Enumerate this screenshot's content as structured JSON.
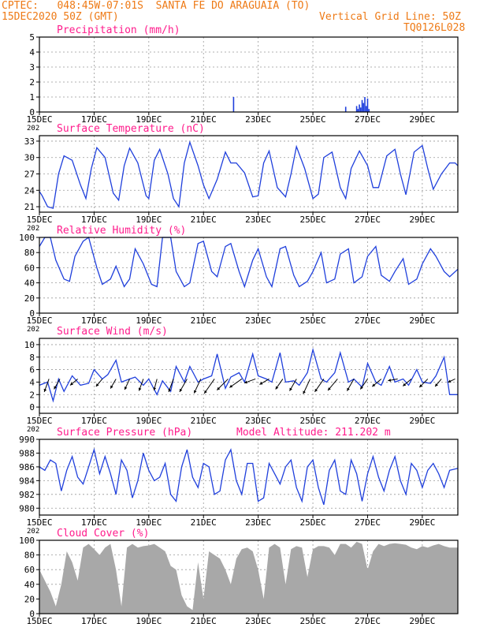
{
  "header": {
    "line1": "CPTEC:   048:45W-07:01S  SANTA FE DO ARAGUAIA (TO)",
    "date": "15DEC2020 50Z (GMT)",
    "grid_note": "Vertical Grid Line: 50Z",
    "code": "TQ0126L028"
  },
  "colors": {
    "header": "#ee7a16",
    "title": "#ff1c8c",
    "series": "#1f3fdc",
    "cloud": "#a8a8a8",
    "wind_arrow": "#000000",
    "grid": "#999999"
  },
  "x_axis": {
    "tick_labels": [
      "15DEC",
      "17DEC",
      "19DEC",
      "21DEC",
      "23DEC",
      "25DEC",
      "27DEC",
      "29DEC"
    ],
    "tick_days": [
      0,
      2,
      4,
      6,
      8,
      10,
      12,
      14
    ],
    "range_days": [
      0,
      15.3
    ],
    "year_fragment": "202"
  },
  "panels": {
    "precip": {
      "title": "Precipitation (mm/h)"
    },
    "temp": {
      "title": "Surface Temperature (nC)"
    },
    "rh": {
      "title": "Relative Humidity (%)"
    },
    "wind": {
      "title": "Surface Wind (m/s)"
    },
    "pressure": {
      "title": "Surface Pressure (hPa)",
      "altitude": "Model Altitude: 211.202 m"
    },
    "cloud": {
      "title": "Cloud Cover (%)"
    }
  },
  "chart_data": [
    {
      "type": "bar",
      "title": "Precipitation (mm/h)",
      "ylim": [
        0,
        5
      ],
      "yticks": [
        0,
        1,
        2,
        3,
        4,
        5
      ],
      "x": [
        7.1,
        11.2,
        11.6,
        11.65,
        11.7,
        11.75,
        11.8,
        11.85,
        11.9,
        11.95,
        12.0,
        12.05
      ],
      "values": [
        1.0,
        0.35,
        0.4,
        0.2,
        0.5,
        0.3,
        0.8,
        0.6,
        1.0,
        0.4,
        0.9,
        0.2
      ]
    },
    {
      "type": "line",
      "title": "Surface Temperature (nC)",
      "ylim": [
        20,
        34
      ],
      "yticks": [
        21,
        24,
        27,
        30,
        33
      ],
      "x": [
        0,
        0.1,
        0.3,
        0.5,
        0.7,
        0.9,
        1.2,
        1.5,
        1.7,
        1.9,
        2.1,
        2.4,
        2.7,
        2.9,
        3.1,
        3.3,
        3.6,
        3.9,
        4.0,
        4.2,
        4.4,
        4.7,
        4.9,
        5.1,
        5.3,
        5.5,
        5.8,
        6.0,
        6.2,
        6.5,
        6.8,
        7.0,
        7.2,
        7.5,
        7.8,
        8.0,
        8.2,
        8.4,
        8.7,
        9.0,
        9.2,
        9.4,
        9.7,
        10.0,
        10.2,
        10.4,
        10.7,
        11.0,
        11.2,
        11.4,
        11.7,
        12.0,
        12.2,
        12.4,
        12.7,
        13.0,
        13.2,
        13.4,
        13.7,
        14.0,
        14.2,
        14.4,
        14.7,
        15.0,
        15.2,
        15.3
      ],
      "values": [
        23.8,
        23.0,
        21.0,
        20.7,
        27.0,
        30.3,
        29.5,
        25.0,
        22.5,
        28.0,
        31.8,
        30.0,
        23.5,
        22.2,
        28.5,
        31.7,
        29.0,
        23.0,
        22.5,
        29.5,
        31.5,
        27.0,
        22.5,
        21.0,
        29.0,
        32.8,
        28.5,
        25.0,
        22.5,
        26.0,
        31.0,
        29.0,
        29.0,
        27.2,
        22.8,
        23.0,
        29.0,
        31.2,
        24.5,
        22.8,
        27.0,
        32.0,
        28.0,
        22.5,
        23.3,
        30.0,
        31.0,
        24.5,
        22.5,
        28.0,
        31.2,
        28.5,
        24.5,
        24.5,
        30.3,
        31.5,
        27.0,
        23.2,
        31.0,
        32.2,
        28.0,
        24.2,
        27.0,
        29.0,
        29.0,
        28.5
      ]
    },
    {
      "type": "line",
      "title": "Relative Humidity (%)",
      "ylim": [
        0,
        100
      ],
      "yticks": [
        0,
        20,
        40,
        60,
        80,
        100
      ],
      "x": [
        0,
        0.2,
        0.4,
        0.6,
        0.9,
        1.1,
        1.3,
        1.6,
        1.8,
        2.1,
        2.3,
        2.6,
        2.8,
        3.1,
        3.3,
        3.5,
        3.8,
        4.1,
        4.3,
        4.5,
        4.8,
        5.0,
        5.3,
        5.5,
        5.8,
        6.0,
        6.3,
        6.5,
        6.8,
        7.0,
        7.3,
        7.5,
        7.8,
        8.0,
        8.3,
        8.5,
        8.8,
        9.0,
        9.3,
        9.5,
        9.8,
        10.0,
        10.3,
        10.5,
        10.8,
        11.0,
        11.3,
        11.5,
        11.8,
        12.0,
        12.3,
        12.5,
        12.8,
        13.0,
        13.3,
        13.5,
        13.8,
        14.0,
        14.3,
        14.5,
        14.8,
        15.0,
        15.3
      ],
      "values": [
        88,
        100,
        100,
        70,
        45,
        42,
        75,
        95,
        100,
        60,
        38,
        45,
        62,
        35,
        45,
        85,
        65,
        38,
        35,
        100,
        100,
        55,
        35,
        40,
        92,
        95,
        55,
        48,
        88,
        92,
        55,
        35,
        70,
        85,
        48,
        35,
        85,
        88,
        50,
        35,
        42,
        55,
        80,
        40,
        45,
        78,
        85,
        40,
        48,
        75,
        88,
        50,
        42,
        55,
        72,
        38,
        45,
        65,
        85,
        75,
        55,
        48,
        58
      ]
    },
    {
      "type": "line",
      "title": "Surface Wind (m/s)",
      "ylim": [
        -1,
        11
      ],
      "yticks": [
        0,
        2,
        4,
        6,
        8,
        10
      ],
      "x": [
        0,
        0.3,
        0.5,
        0.7,
        0.9,
        1.2,
        1.5,
        1.8,
        2.0,
        2.3,
        2.5,
        2.8,
        3.0,
        3.3,
        3.5,
        3.8,
        4.0,
        4.3,
        4.5,
        4.8,
        5.0,
        5.3,
        5.5,
        5.8,
        6.0,
        6.3,
        6.5,
        6.8,
        7.0,
        7.3,
        7.5,
        7.8,
        8.0,
        8.3,
        8.5,
        8.8,
        9.0,
        9.3,
        9.5,
        9.8,
        10.0,
        10.3,
        10.5,
        10.8,
        11.0,
        11.3,
        11.5,
        11.8,
        12.0,
        12.3,
        12.5,
        12.8,
        13.0,
        13.3,
        13.5,
        13.8,
        14.0,
        14.3,
        14.5,
        14.8,
        15.0,
        15.3
      ],
      "values": [
        3.5,
        4.0,
        1.0,
        4.5,
        2.5,
        5.0,
        3.5,
        3.8,
        6.0,
        4.5,
        5.2,
        7.5,
        4.0,
        4.5,
        4.8,
        3.5,
        4.5,
        2.0,
        4.2,
        2.5,
        6.5,
        4.0,
        6.5,
        4.0,
        4.5,
        5.0,
        8.5,
        3.0,
        4.8,
        5.5,
        4.0,
        8.5,
        5.0,
        4.5,
        4.0,
        8.7,
        4.0,
        4.2,
        3.5,
        5.5,
        9.2,
        4.5,
        4.0,
        5.5,
        8.7,
        4.0,
        4.5,
        3.2,
        7.0,
        4.0,
        3.5,
        6.5,
        4.0,
        4.5,
        3.5,
        6.0,
        4.0,
        3.8,
        5.0,
        8.0,
        2.0,
        2.0
      ],
      "arrows": [
        {
          "x": 0.35,
          "speed": 3.5,
          "dir_deg": 200
        },
        {
          "x": 0.75,
          "speed": 3.0,
          "dir_deg": 210
        },
        {
          "x": 1.4,
          "speed": 2.5,
          "dir_deg": 230
        },
        {
          "x": 2.3,
          "speed": 2.5,
          "dir_deg": 220
        },
        {
          "x": 2.8,
          "speed": 2.8,
          "dir_deg": 210
        },
        {
          "x": 3.3,
          "speed": 3.0,
          "dir_deg": 205
        },
        {
          "x": 3.8,
          "speed": 3.2,
          "dir_deg": 200
        },
        {
          "x": 4.3,
          "speed": 3.0,
          "dir_deg": 195
        },
        {
          "x": 4.9,
          "speed": 3.5,
          "dir_deg": 200
        },
        {
          "x": 5.4,
          "speed": 3.8,
          "dir_deg": 210
        },
        {
          "x": 5.9,
          "speed": 4.0,
          "dir_deg": 205
        },
        {
          "x": 6.4,
          "speed": 4.5,
          "dir_deg": 215
        },
        {
          "x": 6.9,
          "speed": 4.0,
          "dir_deg": 225
        },
        {
          "x": 7.4,
          "speed": 3.8,
          "dir_deg": 235
        },
        {
          "x": 7.9,
          "speed": 3.0,
          "dir_deg": 250
        },
        {
          "x": 8.4,
          "speed": 2.8,
          "dir_deg": 240
        },
        {
          "x": 8.9,
          "speed": 3.2,
          "dir_deg": 215
        },
        {
          "x": 9.4,
          "speed": 3.5,
          "dir_deg": 210
        },
        {
          "x": 9.9,
          "speed": 4.2,
          "dir_deg": 205
        },
        {
          "x": 10.4,
          "speed": 4.0,
          "dir_deg": 215
        },
        {
          "x": 10.9,
          "speed": 3.8,
          "dir_deg": 220
        },
        {
          "x": 11.5,
          "speed": 3.5,
          "dir_deg": 210
        },
        {
          "x": 12.0,
          "speed": 3.2,
          "dir_deg": 215
        },
        {
          "x": 12.5,
          "speed": 3.0,
          "dir_deg": 230
        },
        {
          "x": 13.1,
          "speed": 2.5,
          "dir_deg": 260
        },
        {
          "x": 13.6,
          "speed": 2.8,
          "dir_deg": 230
        },
        {
          "x": 14.2,
          "speed": 3.0,
          "dir_deg": 225
        },
        {
          "x": 14.7,
          "speed": 2.5,
          "dir_deg": 220
        },
        {
          "x": 15.2,
          "speed": 2.0,
          "dir_deg": 245
        }
      ]
    },
    {
      "type": "line",
      "title": "Surface Pressure (hPa)",
      "ylim": [
        979,
        990
      ],
      "yticks": [
        980,
        982,
        984,
        986,
        988,
        990
      ],
      "x": [
        0,
        0.2,
        0.4,
        0.6,
        0.8,
        1.0,
        1.2,
        1.4,
        1.6,
        1.8,
        2.0,
        2.2,
        2.4,
        2.6,
        2.8,
        3.0,
        3.2,
        3.4,
        3.6,
        3.8,
        4.0,
        4.2,
        4.4,
        4.6,
        4.8,
        5.0,
        5.2,
        5.4,
        5.6,
        5.8,
        6.0,
        6.2,
        6.4,
        6.6,
        6.8,
        7.0,
        7.2,
        7.4,
        7.6,
        7.8,
        8.0,
        8.2,
        8.4,
        8.6,
        8.8,
        9.0,
        9.2,
        9.4,
        9.6,
        9.8,
        10.0,
        10.2,
        10.4,
        10.6,
        10.8,
        11.0,
        11.2,
        11.4,
        11.6,
        11.8,
        12.0,
        12.2,
        12.4,
        12.6,
        12.8,
        13.0,
        13.2,
        13.4,
        13.6,
        13.8,
        14.0,
        14.2,
        14.4,
        14.6,
        14.8,
        15.0,
        15.3
      ],
      "values": [
        986.0,
        985.5,
        987.0,
        986.5,
        982.5,
        985.5,
        987.5,
        984.5,
        983.5,
        986.0,
        988.5,
        985.0,
        987.5,
        985.0,
        982.0,
        987.0,
        985.5,
        981.5,
        984.0,
        988.0,
        985.5,
        984.0,
        984.5,
        986.5,
        982.0,
        981.0,
        986.0,
        988.5,
        984.5,
        983.0,
        986.5,
        986.0,
        982.0,
        982.5,
        987.0,
        988.5,
        984.0,
        982.0,
        986.5,
        986.5,
        981.0,
        981.5,
        986.5,
        985.0,
        983.5,
        986.0,
        987.0,
        983.0,
        981.0,
        986.0,
        987.0,
        983.0,
        980.5,
        985.5,
        987.0,
        982.5,
        982.0,
        987.0,
        985.0,
        981.0,
        985.0,
        987.5,
        984.5,
        982.5,
        985.5,
        987.5,
        984.0,
        982.0,
        986.5,
        985.5,
        983.0,
        985.5,
        986.5,
        985.0,
        983.0,
        985.5,
        985.8
      ]
    },
    {
      "type": "area",
      "title": "Cloud Cover (%)",
      "ylim": [
        0,
        100
      ],
      "yticks": [
        0,
        20,
        40,
        60,
        80,
        100
      ],
      "x": [
        0,
        0.2,
        0.4,
        0.6,
        0.8,
        1.0,
        1.2,
        1.4,
        1.6,
        1.8,
        2.0,
        2.2,
        2.4,
        2.6,
        2.8,
        3.0,
        3.2,
        3.4,
        3.6,
        3.8,
        4.0,
        4.2,
        4.4,
        4.6,
        4.8,
        5.0,
        5.2,
        5.4,
        5.6,
        5.8,
        6.0,
        6.2,
        6.4,
        6.6,
        6.8,
        7.0,
        7.2,
        7.4,
        7.6,
        7.8,
        8.0,
        8.2,
        8.4,
        8.6,
        8.8,
        9.0,
        9.2,
        9.4,
        9.6,
        9.8,
        10.0,
        10.2,
        10.4,
        10.6,
        10.8,
        11.0,
        11.2,
        11.4,
        11.6,
        11.8,
        12.0,
        12.2,
        12.4,
        12.6,
        12.8,
        13.0,
        13.2,
        13.4,
        13.6,
        13.8,
        14.0,
        14.2,
        14.4,
        14.6,
        14.8,
        15.0,
        15.3
      ],
      "values": [
        60,
        45,
        30,
        10,
        40,
        85,
        70,
        45,
        90,
        95,
        88,
        80,
        90,
        95,
        60,
        10,
        90,
        95,
        90,
        92,
        93,
        95,
        90,
        85,
        65,
        60,
        25,
        10,
        5,
        70,
        20,
        85,
        80,
        75,
        60,
        40,
        75,
        88,
        90,
        85,
        60,
        20,
        90,
        95,
        90,
        40,
        88,
        92,
        90,
        50,
        88,
        92,
        92,
        90,
        80,
        95,
        95,
        90,
        98,
        95,
        60,
        85,
        95,
        92,
        95,
        96,
        95,
        94,
        90,
        88,
        92,
        90,
        93,
        95,
        92,
        90,
        90
      ]
    }
  ]
}
